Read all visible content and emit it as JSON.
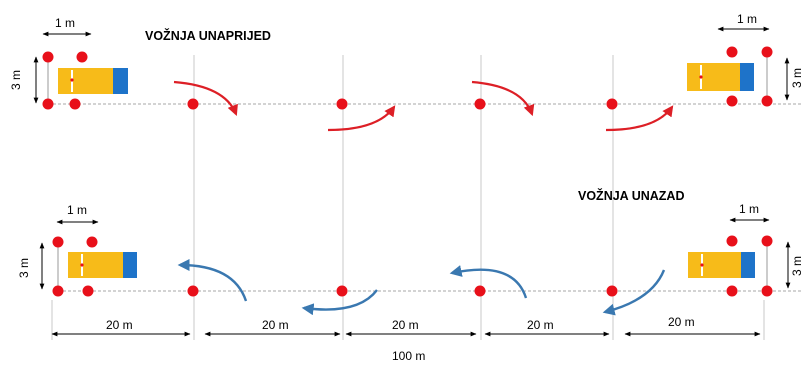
{
  "titles": {
    "forward": "VOŽNJA UNAPRIJED",
    "reverse": "VOŽNJA UNAZAD"
  },
  "labels": {
    "vehicle_length": "1 m",
    "corridor_width": "3 m",
    "segment": "20 m",
    "total": "100 m"
  },
  "colors": {
    "cone": "#e8101a",
    "arrow_forward": "#dd1f26",
    "arrow_reverse": "#3a78b0",
    "vehicle_body": "#f7bb19",
    "vehicle_cab": "#1e73c9",
    "guide_line": "#a7a7a7"
  },
  "icons": {
    "cone": "traffic-cone-icon",
    "vehicle": "van-icon",
    "arrow_forward": "curved-arrow-forward-icon",
    "arrow_reverse": "curved-arrow-reverse-icon"
  }
}
